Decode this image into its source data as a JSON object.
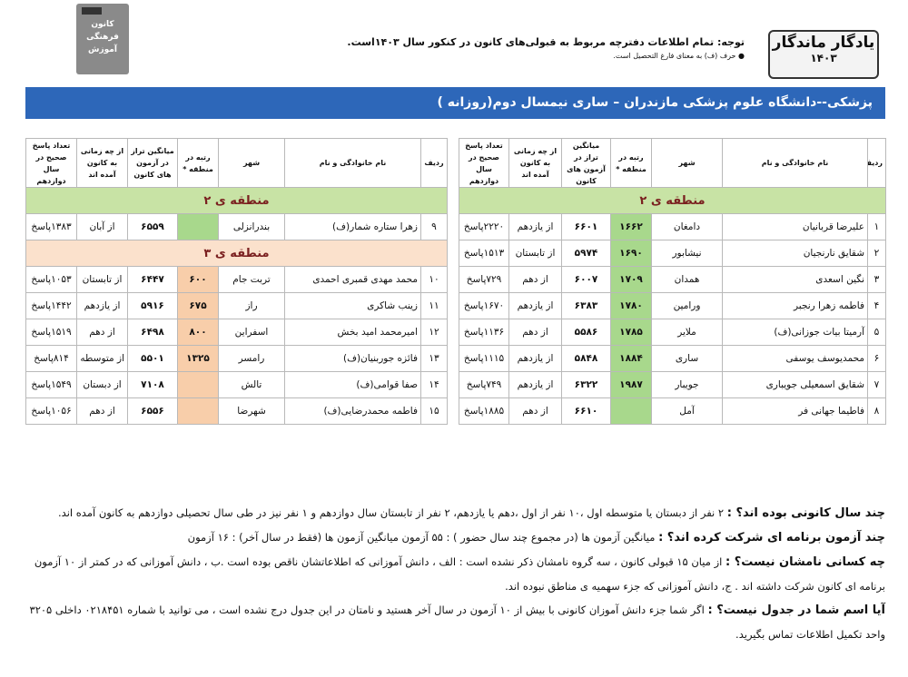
{
  "header": {
    "brand_title": "یادگار ماندگار",
    "brand_year": "۱۴۰۳",
    "notice": "توجه: تمام اطلاعات دفترچه مربوط به قبولی‌های کانون در کنکور سال ۱۴۰۳است.",
    "note": "● حرف (ف) به معنای فارغ التحصیل است.",
    "logo_lines": [
      "کانون",
      "فرهنگی",
      "آموزش"
    ]
  },
  "title": "پزشکی--دانشگاه علوم پزشکی مازندران – ساری نیمسال دوم(روزانه )",
  "table_headers": [
    "ردیف",
    "نام خانوادگی و نام",
    "شهر",
    "رتبه در منطقه *",
    "میانگین تراز در آزمون های کانون",
    "از چه زمانی به کانون آمده اند",
    "تعداد پاسخ صحیح در سال دوازدهم"
  ],
  "tables": [
    {
      "sections": [
        {
          "title": "منطقه ی ۲",
          "rows": [
            [
              "۱",
              "علیرضا قربانیان",
              "دامغان",
              "۱۶۶۲",
              "۶۶۰۱",
              "از یازدهم",
              "۲۲۲۰پاسخ"
            ],
            [
              "۲",
              "شقایق نارنجیان",
              "نیشابور",
              "۱۶۹۰",
              "۵۹۷۴",
              "از تابستان",
              "۱۵۱۳پاسخ"
            ],
            [
              "۳",
              "نگین اسعدی",
              "همدان",
              "۱۷۰۹",
              "۶۰۰۷",
              "از دهم",
              "۷۲۹پاسخ"
            ],
            [
              "۴",
              "فاطمه زهرا رنجبر",
              "ورامین",
              "۱۷۸۰",
              "۶۳۸۳",
              "از یازدهم",
              "۱۶۷۰پاسخ"
            ],
            [
              "۵",
              "آرمیتا بیات جوزانی(ف)",
              "ملایر",
              "۱۷۸۵",
              "۵۵۸۶",
              "از دهم",
              "۱۱۳۶پاسخ"
            ],
            [
              "۶",
              "محمدیوسف یوسفی",
              "ساری",
              "۱۸۸۴",
              "۵۸۴۸",
              "از یازدهم",
              "۱۱۱۵پاسخ"
            ],
            [
              "۷",
              "شقایق اسمعیلی جویباری",
              "جویبار",
              "۱۹۸۷",
              "۶۳۲۲",
              "از یازدهم",
              "۷۴۹پاسخ"
            ],
            [
              "۸",
              "فاطیما جهانی فر",
              "آمل",
              null,
              "۶۶۱۰",
              "از دهم",
              "۱۸۸۵پاسخ"
            ]
          ]
        }
      ]
    },
    {
      "sections": [
        {
          "title": "منطقه ی ۲",
          "rows": [
            [
              "۹",
              "زهرا ستاره شمار(ف)",
              "بندرانزلی",
              null,
              "۶۵۵۹",
              "از آبان",
              "۱۳۸۳پاسخ"
            ]
          ]
        },
        {
          "title": "منطقه ی ۳",
          "rows": [
            [
              "۱۰",
              "محمد مهدی قمبری احمدی",
              "تربت جام",
              "۶۰۰",
              "۶۴۴۷",
              "از تابستان",
              "۱۰۵۳پاسخ"
            ],
            [
              "۱۱",
              "زینب شاکری",
              "راز",
              "۶۷۵",
              "۵۹۱۶",
              "از یازدهم",
              "۱۴۴۲پاسخ"
            ],
            [
              "۱۲",
              "امیرمحمد امید بخش",
              "اسفراین",
              "۸۰۰",
              "۶۴۹۸",
              "از دهم",
              "۱۵۱۹پاسخ"
            ],
            [
              "۱۳",
              "فائزه جوربنیان(ف)",
              "رامسر",
              "۱۳۲۵",
              "۵۵۰۱",
              "از متوسطه اول",
              "۸۱۴پاسخ"
            ],
            [
              "۱۴",
              "صفا قوامی(ف)",
              "تالش",
              null,
              "۷۱۰۸",
              "از دبستان",
              "۱۵۴۹پاسخ"
            ],
            [
              "۱۵",
              "فاطمه محمدرضایی(ف)",
              "شهرضا",
              null,
              "۶۵۵۶",
              "از دهم",
              "۱۰۵۶پاسخ"
            ]
          ]
        }
      ]
    }
  ],
  "notes": [
    {
      "q": "چند سال کانونی بوده اند؟ :",
      "a": "۲ نفر از دبستان یا متوسطه اول ،۱۰ نفر از اول ،دهم یا یازدهم، ۲ نفر از تابستان سال دوازدهم و ۱ نفر نیز در طی سال تحصیلی دوازدهم به کانون آمده اند."
    },
    {
      "q": "چند آزمون برنامه ای شرکت کرده اند؟ :",
      "a": "میانگین آزمون ها (در مجموع چند سال حضور ) : ۵۵ آزمون      میانگین آزمون ها (فقط در سال آخر) : ۱۶ آزمون"
    },
    {
      "q": "چه کسانی نامشان نیست؟ :",
      "a": "از میان ۱۵ قبولی کانون ، سه گروه نامشان ذکر نشده است : الف ، دانش آموزانی که اطلاعاتشان ناقص بوده است .ب ، دانش آموزانی که در کمتر از ۱۰ آزمون برنامه ای کانون شرکت داشته اند . ج، دانش آموزانی که جزء سهمیه ی مناطق نبوده اند."
    },
    {
      "q": "آیا اسم شما در جدول نیست؟ :",
      "a": "اگر شما جزء دانش آموزان کانونی با بیش از ۱۰ آزمون در سال آخر هستید و نامتان در این جدول درج نشده است ، می توانید با شماره ۰۲۱۸۴۵۱ داخلی ۳۲۰۵ واحد تکمیل اطلاعات تماس بگیرید."
    }
  ]
}
